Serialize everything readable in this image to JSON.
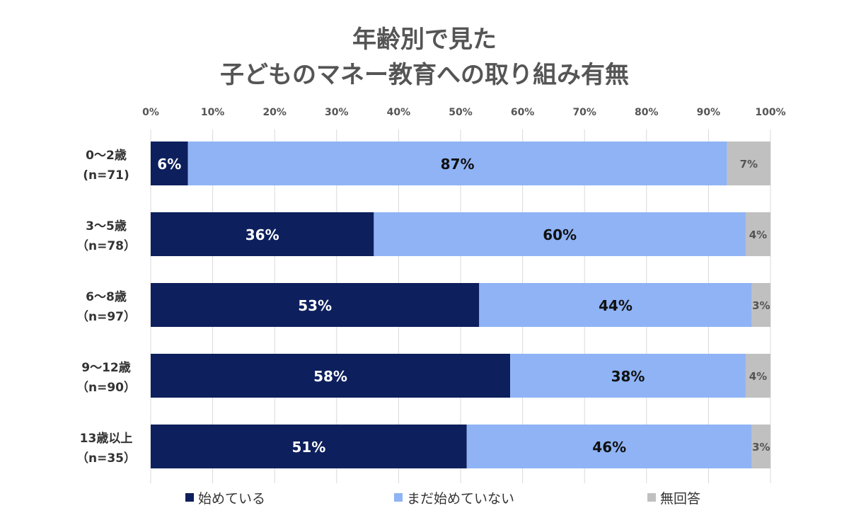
{
  "chart_data": {
    "type": "bar",
    "orientation": "horizontal",
    "stacked": true,
    "title": [
      "年齢別で見た",
      "子どものマネー教育への取り組み有無"
    ],
    "x_ticks": [
      "0%",
      "10%",
      "20%",
      "30%",
      "40%",
      "50%",
      "60%",
      "70%",
      "80%",
      "90%",
      "100%"
    ],
    "xlim": [
      0,
      100
    ],
    "grid": "vertical",
    "legend_position": "bottom",
    "categories": [
      {
        "label": "0～2歳",
        "n": "(n=71)"
      },
      {
        "label": "3～5歳",
        "n": "（n=78）"
      },
      {
        "label": "6～8歳",
        "n": "（n=97）"
      },
      {
        "label": "9～12歳",
        "n": "（n=90）"
      },
      {
        "label": "13歳以上",
        "n": "（n=35）"
      }
    ],
    "series": [
      {
        "name": "始めている",
        "color": "#0d1f5c",
        "label_color": "#ffffff",
        "values": [
          6,
          36,
          53,
          58,
          51
        ],
        "labels": [
          "6%",
          "36%",
          "53%",
          "58%",
          "51%"
        ]
      },
      {
        "name": "まだ始めていない",
        "color": "#8fb3f5",
        "label_color": "#111111",
        "values": [
          87,
          60,
          44,
          38,
          46
        ],
        "labels": [
          "87%",
          "60%",
          "44%",
          "38%",
          "46%"
        ]
      },
      {
        "name": "無回答",
        "color": "#c0c0c0",
        "label_color": "#555555",
        "values": [
          7,
          4,
          3,
          4,
          3
        ],
        "labels": [
          "7%",
          "4%",
          "3%",
          "4%",
          "3%"
        ]
      }
    ]
  }
}
